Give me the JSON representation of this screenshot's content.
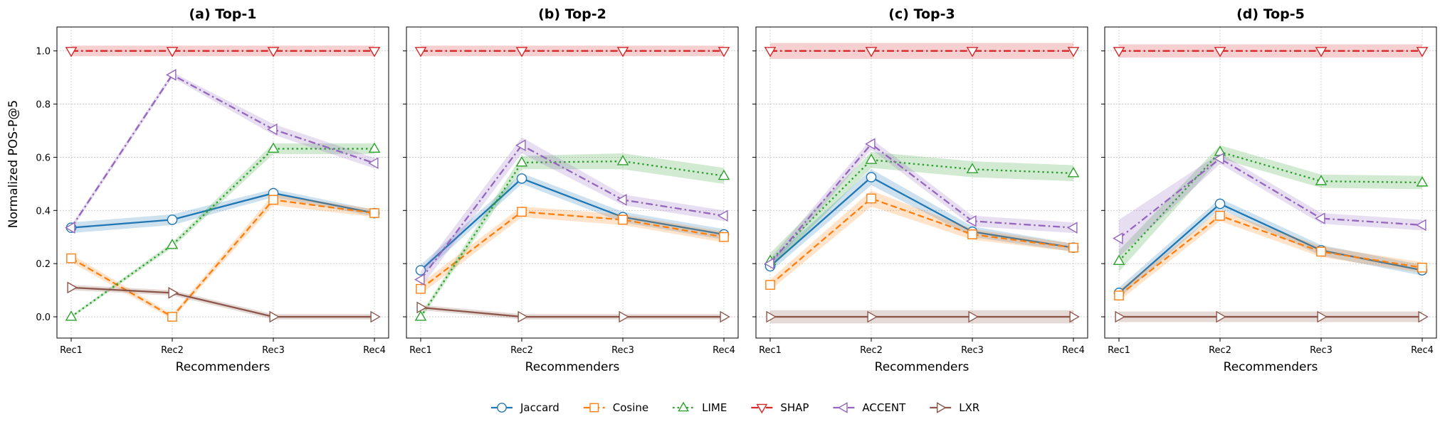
{
  "figure": {
    "ylabel": "Normalized POS-P@5",
    "xlabel": "Recommenders"
  },
  "chart_data": [
    {
      "type": "line",
      "title": "(a) Top-1",
      "categories": [
        "Rec1",
        "Rec2",
        "Rec3",
        "Rec4"
      ],
      "ylim": [
        -0.08,
        1.09
      ],
      "yticks": [
        "0.0",
        "0.2",
        "0.4",
        "0.6",
        "0.8",
        "1.0"
      ],
      "grid": true,
      "series": [
        {
          "name": "Jaccard",
          "values": [
            0.335,
            0.365,
            0.465,
            0.39
          ],
          "band": [
            0.02,
            0.02,
            0.015,
            0.012
          ]
        },
        {
          "name": "Cosine",
          "values": [
            0.22,
            0.0,
            0.44,
            0.39
          ],
          "band": [
            0.015,
            0.01,
            0.02,
            0.015
          ]
        },
        {
          "name": "LIME",
          "values": [
            0.0,
            0.27,
            0.632,
            0.632
          ],
          "band": [
            0.005,
            0.01,
            0.02,
            0.02
          ]
        },
        {
          "name": "SHAP",
          "values": [
            1.0,
            1.0,
            1.0,
            1.0
          ],
          "band": [
            0.02,
            0.02,
            0.02,
            0.02
          ]
        },
        {
          "name": "ACCENT",
          "values": [
            0.335,
            0.91,
            0.705,
            0.578
          ],
          "band": [
            0.01,
            0.01,
            0.02,
            0.02
          ]
        },
        {
          "name": "LXR",
          "values": [
            0.11,
            0.09,
            0.0,
            0.0
          ],
          "band": [
            0.01,
            0.01,
            0.01,
            0.01
          ]
        }
      ]
    },
    {
      "type": "line",
      "title": "(b) Top-2",
      "categories": [
        "Rec1",
        "Rec2",
        "Rec3",
        "Rec4"
      ],
      "ylim": [
        -0.08,
        1.09
      ],
      "yticks": [
        "0.0",
        "0.2",
        "0.4",
        "0.6",
        "0.8",
        "1.0"
      ],
      "grid": true,
      "series": [
        {
          "name": "Jaccard",
          "values": [
            0.175,
            0.52,
            0.375,
            0.31
          ],
          "band": [
            0.02,
            0.02,
            0.02,
            0.02
          ]
        },
        {
          "name": "Cosine",
          "values": [
            0.105,
            0.395,
            0.365,
            0.3
          ],
          "band": [
            0.02,
            0.02,
            0.02,
            0.02
          ]
        },
        {
          "name": "LIME",
          "values": [
            0.0,
            0.58,
            0.585,
            0.53
          ],
          "band": [
            0.01,
            0.025,
            0.03,
            0.03
          ]
        },
        {
          "name": "SHAP",
          "values": [
            1.0,
            1.0,
            1.0,
            1.0
          ],
          "band": [
            0.02,
            0.02,
            0.02,
            0.02
          ]
        },
        {
          "name": "ACCENT",
          "values": [
            0.14,
            0.645,
            0.44,
            0.38
          ],
          "band": [
            0.03,
            0.03,
            0.02,
            0.02
          ]
        },
        {
          "name": "LXR",
          "values": [
            0.035,
            0.0,
            0.0,
            0.0
          ],
          "band": [
            0.01,
            0.01,
            0.01,
            0.01
          ]
        }
      ]
    },
    {
      "type": "line",
      "title": "(c) Top-3",
      "categories": [
        "Rec1",
        "Rec2",
        "Rec3",
        "Rec4"
      ],
      "ylim": [
        -0.08,
        1.09
      ],
      "yticks": [
        "0.0",
        "0.2",
        "0.4",
        "0.6",
        "0.8",
        "1.0"
      ],
      "grid": true,
      "series": [
        {
          "name": "Jaccard",
          "values": [
            0.19,
            0.525,
            0.32,
            0.26
          ],
          "band": [
            0.02,
            0.03,
            0.02,
            0.015
          ]
        },
        {
          "name": "Cosine",
          "values": [
            0.12,
            0.445,
            0.31,
            0.26
          ],
          "band": [
            0.02,
            0.03,
            0.02,
            0.015
          ]
        },
        {
          "name": "LIME",
          "values": [
            0.21,
            0.59,
            0.555,
            0.54
          ],
          "band": [
            0.03,
            0.03,
            0.03,
            0.03
          ]
        },
        {
          "name": "SHAP",
          "values": [
            1.0,
            1.0,
            1.0,
            1.0
          ],
          "band": [
            0.03,
            0.03,
            0.03,
            0.03
          ]
        },
        {
          "name": "ACCENT",
          "values": [
            0.2,
            0.65,
            0.36,
            0.335
          ],
          "band": [
            0.02,
            0.02,
            0.02,
            0.02
          ]
        },
        {
          "name": "LXR",
          "values": [
            0.0,
            0.0,
            0.0,
            0.0
          ],
          "band": [
            0.025,
            0.025,
            0.025,
            0.025
          ]
        }
      ]
    },
    {
      "type": "line",
      "title": "(d) Top-5",
      "categories": [
        "Rec1",
        "Rec2",
        "Rec3",
        "Rec4"
      ],
      "ylim": [
        -0.08,
        1.09
      ],
      "yticks": [
        "0.0",
        "0.2",
        "0.4",
        "0.6",
        "0.8",
        "1.0"
      ],
      "grid": true,
      "series": [
        {
          "name": "Jaccard",
          "values": [
            0.09,
            0.425,
            0.25,
            0.175
          ],
          "band": [
            0.02,
            0.02,
            0.02,
            0.02
          ]
        },
        {
          "name": "Cosine",
          "values": [
            0.08,
            0.38,
            0.245,
            0.185
          ],
          "band": [
            0.02,
            0.02,
            0.02,
            0.02
          ]
        },
        {
          "name": "LIME",
          "values": [
            0.21,
            0.62,
            0.51,
            0.505
          ],
          "band": [
            0.04,
            0.025,
            0.025,
            0.025
          ]
        },
        {
          "name": "SHAP",
          "values": [
            1.0,
            1.0,
            1.0,
            1.0
          ],
          "band": [
            0.025,
            0.025,
            0.025,
            0.025
          ]
        },
        {
          "name": "ACCENT",
          "values": [
            0.295,
            0.595,
            0.37,
            0.345
          ],
          "band": [
            0.07,
            0.02,
            0.02,
            0.02
          ]
        },
        {
          "name": "LXR",
          "values": [
            0.0,
            0.0,
            0.0,
            0.0
          ],
          "band": [
            0.02,
            0.02,
            0.02,
            0.02
          ]
        }
      ]
    }
  ],
  "legend": {
    "placement": "bottom-center",
    "items": [
      {
        "label": "Jaccard",
        "color": "#1f77b4",
        "marker": "circle",
        "dash": "solid"
      },
      {
        "label": "Cosine",
        "color": "#ff7f0e",
        "marker": "square",
        "dash": "dashed"
      },
      {
        "label": "LIME",
        "color": "#2ca02c",
        "marker": "triangle-up",
        "dash": "dotted"
      },
      {
        "label": "SHAP",
        "color": "#d62728",
        "marker": "triangle-down",
        "dash": "dashdot"
      },
      {
        "label": "ACCENT",
        "color": "#9467bd",
        "marker": "triangle-left",
        "dash": "dashdot"
      },
      {
        "label": "LXR",
        "color": "#8c564b",
        "marker": "triangle-right",
        "dash": "solid"
      }
    ]
  }
}
